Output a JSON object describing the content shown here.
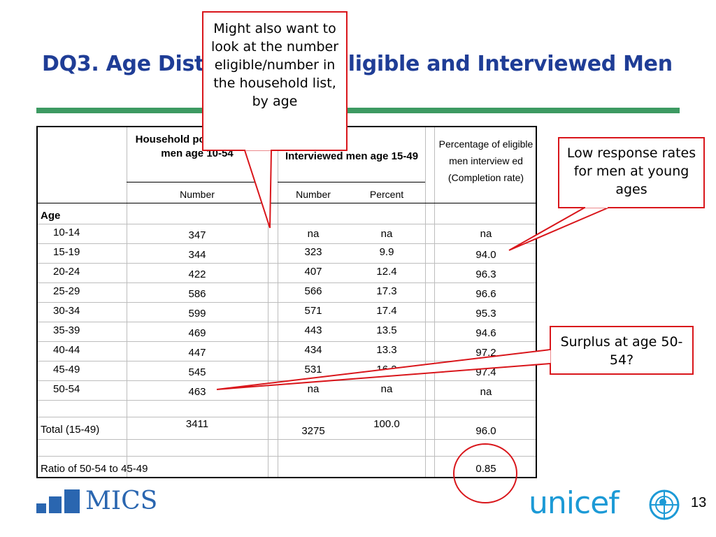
{
  "slide": {
    "title": "DQ3. Age Distribution of Eligible and Interviewed Men",
    "page_number": "13"
  },
  "table": {
    "headers": {
      "household_population": "Household population of men age 10-54",
      "interviewed": "Interviewed men age 15-49",
      "percentage": "Percentage of eligible men interview ed (Completion rate)"
    },
    "subheaders": {
      "number1": "Number",
      "number2": "Number",
      "percent": "Percent"
    },
    "section_label": "Age",
    "rows": [
      {
        "age": "10-14",
        "household": "347",
        "interviewed": "na",
        "percent": "na",
        "completion": "na"
      },
      {
        "age": "15-19",
        "household": "344",
        "interviewed": "323",
        "percent": "9.9",
        "completion": "94.0"
      },
      {
        "age": "20-24",
        "household": "422",
        "interviewed": "407",
        "percent": "12.4",
        "completion": "96.3"
      },
      {
        "age": "25-29",
        "household": "586",
        "interviewed": "566",
        "percent": "17.3",
        "completion": "96.6"
      },
      {
        "age": "30-34",
        "household": "599",
        "interviewed": "571",
        "percent": "17.4",
        "completion": "95.3"
      },
      {
        "age": "35-39",
        "household": "469",
        "interviewed": "443",
        "percent": "13.5",
        "completion": "94.6"
      },
      {
        "age": "40-44",
        "household": "447",
        "interviewed": "434",
        "percent": "13.3",
        "completion": "97.2"
      },
      {
        "age": "45-49",
        "household": "545",
        "interviewed": "531",
        "percent": "16.2",
        "completion": "97.4"
      },
      {
        "age": "50-54",
        "household": "463",
        "interviewed": "na",
        "percent": "na",
        "completion": "na"
      }
    ],
    "total": {
      "label": "Total (15-49)",
      "household": "3411",
      "interviewed": "3275",
      "percent": "100.0",
      "completion": "96.0"
    },
    "ratio": {
      "label": "Ratio of 50-54 to 45-49",
      "value": "0.85"
    }
  },
  "callouts": {
    "might_also": "Might also want to look at the number eligible/number in the household list, by age",
    "low_response": "Low response rates for men at young ages",
    "surplus": "Surplus at age 50-54?"
  },
  "logos": {
    "mics": "MICS",
    "unicef": "unicef"
  },
  "colors": {
    "title": "#1f3d96",
    "title_bar": "#3d9a62",
    "callout_border": "#d9161b",
    "mics_blue": "#2a66b0",
    "unicef_blue": "#1c9ad6"
  }
}
